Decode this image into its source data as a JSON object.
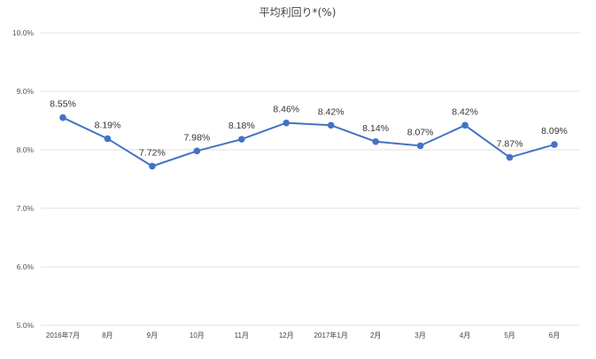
{
  "chart_data": {
    "type": "line",
    "title": "平均利回り*(%)",
    "categories": [
      "2016年7月",
      "8月",
      "9月",
      "10月",
      "11月",
      "12月",
      "2017年1月",
      "2月",
      "3月",
      "4月",
      "5月",
      "6月"
    ],
    "series": [
      {
        "values": [
          8.55,
          8.19,
          7.72,
          7.98,
          8.18,
          8.46,
          8.42,
          8.14,
          8.07,
          8.42,
          7.87,
          8.09
        ],
        "data_labels": [
          "8.55%",
          "8.19%",
          "7.72%",
          "7.98%",
          "8.18%",
          "8.46%",
          "8.42%",
          "8.14%",
          "8.07%",
          "8.42%",
          "7.87%",
          "8.09%"
        ]
      }
    ],
    "ylim": [
      5.0,
      10.0
    ],
    "yticks": [
      5.0,
      6.0,
      7.0,
      8.0,
      9.0,
      10.0
    ],
    "ytick_labels": [
      "5.0%",
      "6.0%",
      "7.0%",
      "8.0%",
      "9.0%",
      "10.0%"
    ],
    "xlabel": "",
    "ylabel": "",
    "grid": true,
    "legend": "none",
    "line_color": "#4472c4"
  }
}
